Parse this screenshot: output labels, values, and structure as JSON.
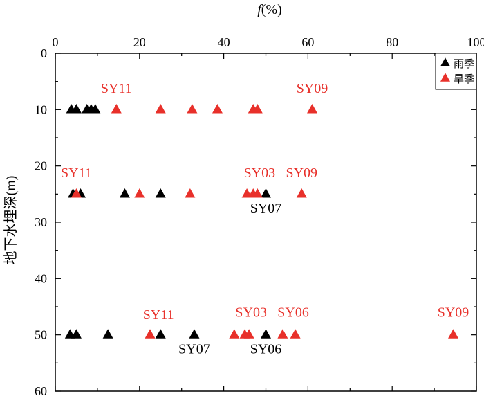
{
  "chart_data": {
    "type": "scatter",
    "title": "",
    "xlabel": "f(%)",
    "xlabel_italic_part": "f",
    "xlabel_rest": "(%)",
    "ylabel": "地下水埋深(m)",
    "x_axis_position": "top",
    "y_axis_inverted": true,
    "xlim": [
      0,
      100
    ],
    "ylim": [
      0,
      60
    ],
    "xticks": [
      0,
      20,
      40,
      60,
      80,
      100
    ],
    "yticks": [
      0,
      10,
      20,
      30,
      40,
      50,
      60
    ],
    "grid": false,
    "legend_position": "top-right",
    "series": [
      {
        "name": "雨季",
        "color": "#000000",
        "marker": "triangle",
        "points": [
          {
            "x": 3.8,
            "y": 10
          },
          {
            "x": 5.0,
            "y": 10
          },
          {
            "x": 7.5,
            "y": 10
          },
          {
            "x": 8.5,
            "y": 10
          },
          {
            "x": 9.5,
            "y": 10
          },
          {
            "x": 4.2,
            "y": 25
          },
          {
            "x": 6.0,
            "y": 25
          },
          {
            "x": 16.5,
            "y": 25
          },
          {
            "x": 25.0,
            "y": 25
          },
          {
            "x": 50.0,
            "y": 25
          },
          {
            "x": 3.5,
            "y": 50
          },
          {
            "x": 5.0,
            "y": 50
          },
          {
            "x": 12.5,
            "y": 50
          },
          {
            "x": 25.0,
            "y": 50
          },
          {
            "x": 33.0,
            "y": 50
          },
          {
            "x": 50.0,
            "y": 50
          }
        ]
      },
      {
        "name": "旱季",
        "color": "#e8302a",
        "marker": "triangle",
        "points": [
          {
            "x": 14.5,
            "y": 10
          },
          {
            "x": 25.0,
            "y": 10
          },
          {
            "x": 32.5,
            "y": 10
          },
          {
            "x": 38.5,
            "y": 10
          },
          {
            "x": 47.0,
            "y": 10
          },
          {
            "x": 48.0,
            "y": 10
          },
          {
            "x": 61.0,
            "y": 10
          },
          {
            "x": 5.0,
            "y": 25
          },
          {
            "x": 20.0,
            "y": 25
          },
          {
            "x": 32.0,
            "y": 25
          },
          {
            "x": 45.5,
            "y": 25
          },
          {
            "x": 47.0,
            "y": 25
          },
          {
            "x": 48.0,
            "y": 25
          },
          {
            "x": 58.5,
            "y": 25
          },
          {
            "x": 22.5,
            "y": 50
          },
          {
            "x": 42.5,
            "y": 50
          },
          {
            "x": 45.0,
            "y": 50
          },
          {
            "x": 46.0,
            "y": 50
          },
          {
            "x": 54.0,
            "y": 50
          },
          {
            "x": 57.0,
            "y": 50
          },
          {
            "x": 94.5,
            "y": 50
          }
        ]
      }
    ],
    "annotations": [
      {
        "text": "SY11",
        "x": 14.5,
        "y": 7.0,
        "color": "#e8302a"
      },
      {
        "text": "SY09",
        "x": 61.0,
        "y": 7.0,
        "color": "#e8302a"
      },
      {
        "text": "SY11",
        "x": 5.0,
        "y": 22.0,
        "color": "#e8302a"
      },
      {
        "text": "SY03",
        "x": 48.5,
        "y": 22.0,
        "color": "#e8302a"
      },
      {
        "text": "SY09",
        "x": 58.5,
        "y": 22.0,
        "color": "#e8302a"
      },
      {
        "text": "SY07",
        "x": 50.0,
        "y": 28.3,
        "color": "#000000"
      },
      {
        "text": "SY11",
        "x": 24.5,
        "y": 47.2,
        "color": "#e8302a"
      },
      {
        "text": "SY03",
        "x": 46.5,
        "y": 46.8,
        "color": "#e8302a"
      },
      {
        "text": "SY06",
        "x": 56.5,
        "y": 46.8,
        "color": "#e8302a"
      },
      {
        "text": "SY09",
        "x": 94.5,
        "y": 46.8,
        "color": "#e8302a"
      },
      {
        "text": "SY07",
        "x": 33.0,
        "y": 53.3,
        "color": "#000000"
      },
      {
        "text": "SY06",
        "x": 50.0,
        "y": 53.3,
        "color": "#000000"
      }
    ]
  }
}
